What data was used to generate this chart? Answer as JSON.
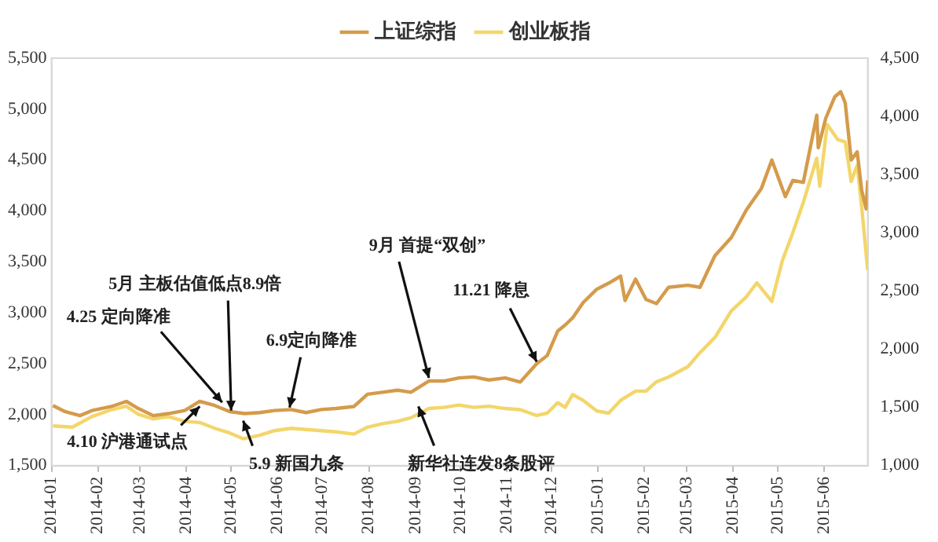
{
  "chart_data": {
    "type": "line",
    "legend": "top",
    "marker": "none",
    "line_style": "solid",
    "grid": false,
    "xlim": [
      "2014-01-01",
      "2015-06-30"
    ],
    "xticks": [
      "2014-01",
      "2014-02",
      "2014-03",
      "2014-04",
      "2014-05",
      "2014-06",
      "2014-07",
      "2014-08",
      "2014-09",
      "2014-10",
      "2014-11",
      "2014-12",
      "2015-01",
      "2015-02",
      "2015-03",
      "2015-04",
      "2015-05",
      "2015-06"
    ],
    "ylim": [
      1500,
      5500
    ],
    "yticks": [
      {
        "value": 1500,
        "label": "1,500"
      },
      {
        "value": 2000,
        "label": "2,000"
      },
      {
        "value": 2500,
        "label": "2,500"
      },
      {
        "value": 3000,
        "label": "3,000"
      },
      {
        "value": 3500,
        "label": "3,500"
      },
      {
        "value": 4000,
        "label": "4,000"
      },
      {
        "value": 4500,
        "label": "4,500"
      },
      {
        "value": 5000,
        "label": "5,000"
      },
      {
        "value": 5500,
        "label": "5,500"
      }
    ],
    "y2lim": [
      1000,
      4500
    ],
    "y2ticks": [
      {
        "value": 1000,
        "label": "1,000"
      },
      {
        "value": 1500,
        "label": "1,500"
      },
      {
        "value": 2000,
        "label": "2,000"
      },
      {
        "value": 2500,
        "label": "2,500"
      },
      {
        "value": 3000,
        "label": "3,000"
      },
      {
        "value": 3500,
        "label": "3,500"
      },
      {
        "value": 4000,
        "label": "4,000"
      },
      {
        "value": 4500,
        "label": "4,500"
      }
    ],
    "series": [
      {
        "name": "上证综指",
        "color": "#d49b4b",
        "x": [
          "2014-01-02",
          "2014-01-10",
          "2014-01-20",
          "2014-01-28",
          "2014-02-10",
          "2014-02-20",
          "2014-02-28",
          "2014-03-10",
          "2014-03-20",
          "2014-03-31",
          "2014-04-10",
          "2014-04-20",
          "2014-04-30",
          "2014-05-10",
          "2014-05-20",
          "2014-05-30",
          "2014-06-10",
          "2014-06-20",
          "2014-06-30",
          "2014-07-10",
          "2014-07-22",
          "2014-07-31",
          "2014-08-10",
          "2014-08-20",
          "2014-08-29",
          "2014-09-10",
          "2014-09-20",
          "2014-09-30",
          "2014-10-10",
          "2014-10-20",
          "2014-10-31",
          "2014-11-10",
          "2014-11-21",
          "2014-11-28",
          "2014-12-05",
          "2014-12-10",
          "2014-12-15",
          "2014-12-22",
          "2014-12-31",
          "2015-01-08",
          "2015-01-16",
          "2015-01-19",
          "2015-01-26",
          "2015-02-02",
          "2015-02-09",
          "2015-02-17",
          "2015-03-02",
          "2015-03-10",
          "2015-03-20",
          "2015-03-31",
          "2015-04-10",
          "2015-04-20",
          "2015-04-27",
          "2015-05-06",
          "2015-05-11",
          "2015-05-18",
          "2015-05-27",
          "2015-05-28",
          "2015-06-02",
          "2015-06-08",
          "2015-06-12",
          "2015-06-15",
          "2015-06-19",
          "2015-06-23",
          "2015-06-26",
          "2015-06-29",
          "2015-06-30"
        ],
        "values": [
          2090,
          2030,
          1990,
          2040,
          2080,
          2130,
          2060,
          1990,
          2010,
          2040,
          2130,
          2090,
          2030,
          2010,
          2020,
          2040,
          2050,
          2020,
          2050,
          2060,
          2080,
          2200,
          2220,
          2240,
          2220,
          2330,
          2330,
          2360,
          2370,
          2340,
          2360,
          2320,
          2500,
          2580,
          2820,
          2880,
          2950,
          3100,
          3230,
          3290,
          3360,
          3120,
          3330,
          3130,
          3090,
          3250,
          3270,
          3250,
          3560,
          3740,
          4010,
          4220,
          4500,
          4140,
          4300,
          4280,
          4940,
          4620,
          4910,
          5120,
          5170,
          5060,
          4500,
          4580,
          4200,
          4020,
          4300
        ]
      },
      {
        "name": "创业板指",
        "color": "#f3d66b",
        "axis": "y2",
        "x": [
          "2014-01-02",
          "2014-01-15",
          "2014-01-28",
          "2014-02-10",
          "2014-02-20",
          "2014-02-28",
          "2014-03-10",
          "2014-03-20",
          "2014-03-31",
          "2014-04-10",
          "2014-04-20",
          "2014-04-30",
          "2014-05-09",
          "2014-05-20",
          "2014-05-30",
          "2014-06-10",
          "2014-06-20",
          "2014-06-30",
          "2014-07-10",
          "2014-07-22",
          "2014-07-31",
          "2014-08-10",
          "2014-08-20",
          "2014-08-29",
          "2014-09-10",
          "2014-09-20",
          "2014-09-30",
          "2014-10-10",
          "2014-10-20",
          "2014-10-31",
          "2014-11-10",
          "2014-11-21",
          "2014-11-28",
          "2014-12-05",
          "2014-12-10",
          "2014-12-15",
          "2014-12-22",
          "2014-12-31",
          "2015-01-08",
          "2015-01-16",
          "2015-01-26",
          "2015-02-02",
          "2015-02-09",
          "2015-02-17",
          "2015-03-02",
          "2015-03-10",
          "2015-03-20",
          "2015-03-31",
          "2015-04-10",
          "2015-04-17",
          "2015-04-27",
          "2015-05-04",
          "2015-05-11",
          "2015-05-18",
          "2015-05-27",
          "2015-05-29",
          "2015-06-03",
          "2015-06-10",
          "2015-06-15",
          "2015-06-19",
          "2015-06-23",
          "2015-06-26",
          "2015-06-30"
        ],
        "values": [
          1340,
          1330,
          1420,
          1480,
          1510,
          1440,
          1400,
          1420,
          1380,
          1370,
          1320,
          1280,
          1230,
          1260,
          1300,
          1320,
          1310,
          1300,
          1290,
          1270,
          1330,
          1360,
          1380,
          1410,
          1490,
          1500,
          1520,
          1500,
          1510,
          1490,
          1480,
          1430,
          1450,
          1540,
          1500,
          1610,
          1560,
          1470,
          1450,
          1560,
          1640,
          1640,
          1720,
          1760,
          1850,
          1970,
          2100,
          2330,
          2450,
          2570,
          2410,
          2760,
          3000,
          3260,
          3640,
          3400,
          3930,
          3800,
          3780,
          3440,
          3580,
          3220,
          2680
        ]
      }
    ],
    "annotations": [
      {
        "text": "4.25 定向降准",
        "x": "2014-04-25",
        "y": 2120
      },
      {
        "text": "4.10 沪港通试点",
        "x": "2014-04-10",
        "y": 2080
      },
      {
        "text": "5月 主板估值低点8.9倍",
        "x": "2014-05",
        "y": 2040
      },
      {
        "text": "5.9 新国九条",
        "x": "2014-05-09",
        "y": 1940
      },
      {
        "text": "6.9定向降准",
        "x": "2014-06-09",
        "y": 2070
      },
      {
        "text": "9月 首提“双创”",
        "x": "2014-09-10",
        "y": 2360
      },
      {
        "text": "新华社连发8条股评",
        "x": "2014-09-03",
        "y": 2080
      },
      {
        "text": "11.21 降息",
        "x": "2014-11-21",
        "y": 2520
      }
    ]
  }
}
